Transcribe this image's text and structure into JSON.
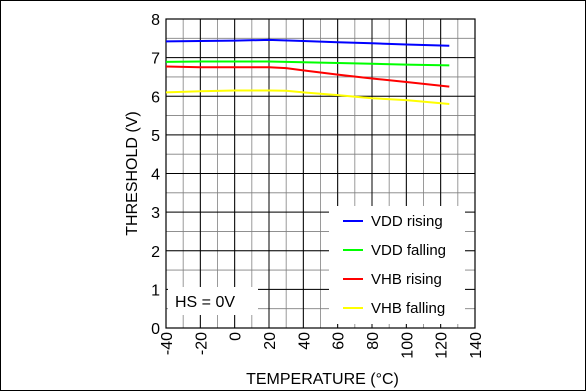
{
  "chart_data": {
    "type": "line",
    "xlabel": "TEMPERATURE (°C)",
    "ylabel": "THRESHOLD (V)",
    "xlim": [
      -40,
      140
    ],
    "ylim": [
      0,
      8
    ],
    "x_ticks": [
      -40,
      -20,
      0,
      20,
      40,
      60,
      80,
      100,
      120,
      140
    ],
    "y_ticks": [
      0,
      1,
      2,
      3,
      4,
      5,
      6,
      7,
      8
    ],
    "x_minor_step": 10,
    "y_minor_step": 0.5,
    "grid": true,
    "legend_position": "bottom-right",
    "annotation": "HS = 0V",
    "series": [
      {
        "name": "VDD rising",
        "color": "#0000ff",
        "x": [
          -40,
          -20,
          0,
          20,
          40,
          60,
          80,
          100,
          125
        ],
        "y": [
          7.42,
          7.43,
          7.44,
          7.46,
          7.43,
          7.4,
          7.37,
          7.34,
          7.31
        ]
      },
      {
        "name": "VDD falling",
        "color": "#00ff00",
        "x": [
          -40,
          -20,
          0,
          20,
          40,
          60,
          80,
          100,
          125
        ],
        "y": [
          6.89,
          6.9,
          6.9,
          6.9,
          6.88,
          6.86,
          6.84,
          6.82,
          6.8
        ]
      },
      {
        "name": "VHB rising",
        "color": "#ff0000",
        "x": [
          -40,
          -20,
          0,
          20,
          30,
          40,
          60,
          80,
          100,
          125
        ],
        "y": [
          6.77,
          6.75,
          6.75,
          6.75,
          6.73,
          6.67,
          6.56,
          6.46,
          6.37,
          6.25
        ]
      },
      {
        "name": "VHB falling",
        "color": "#ffff00",
        "x": [
          -40,
          -20,
          0,
          20,
          30,
          40,
          60,
          80,
          100,
          125
        ],
        "y": [
          6.1,
          6.13,
          6.15,
          6.15,
          6.14,
          6.1,
          6.03,
          5.95,
          5.9,
          5.8
        ]
      }
    ]
  }
}
